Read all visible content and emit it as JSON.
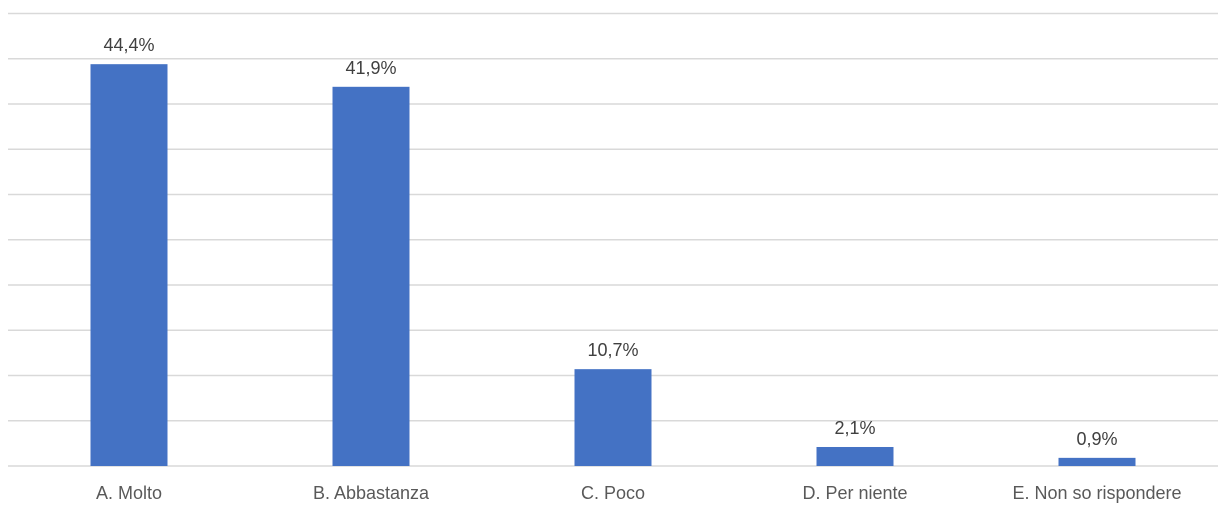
{
  "chart_data": {
    "type": "bar",
    "categories": [
      "A. Molto",
      "B. Abbastanza",
      "C. Poco",
      "D. Per niente",
      "E. Non so rispondere"
    ],
    "values": [
      44.4,
      41.9,
      10.7,
      2.1,
      0.9
    ],
    "value_labels": [
      "44,4%",
      "41,9%",
      "10,7%",
      "2,1%",
      "0,9%"
    ],
    "ylim": [
      0,
      50
    ],
    "grid_step": 5,
    "grid": true,
    "legend": "none",
    "bar_color": "#4472c4",
    "title": "",
    "xlabel": "",
    "ylabel": ""
  }
}
